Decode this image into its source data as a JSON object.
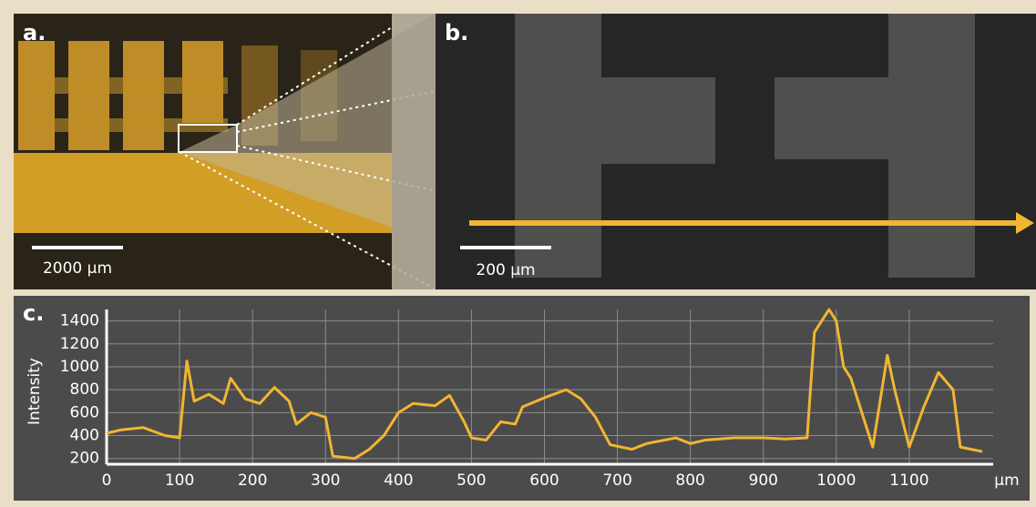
{
  "panels": {
    "a": {
      "label": "a.",
      "scale_bar": "2000 µm"
    },
    "b": {
      "label": "b.",
      "scale_bar": "200 µm"
    }
  },
  "chart_data": {
    "type": "line",
    "panel_label": "c.",
    "y_label": "Intensity",
    "x_unit": "µm",
    "x": [
      0,
      20,
      50,
      80,
      100,
      110,
      120,
      140,
      160,
      170,
      190,
      210,
      230,
      250,
      260,
      280,
      300,
      310,
      340,
      360,
      380,
      400,
      420,
      450,
      470,
      490,
      500,
      520,
      540,
      560,
      570,
      600,
      630,
      650,
      670,
      690,
      720,
      740,
      780,
      800,
      820,
      860,
      900,
      930,
      960,
      970,
      990,
      1000,
      1010,
      1020,
      1030,
      1050,
      1070,
      1080,
      1100,
      1120,
      1140,
      1160,
      1170,
      1200
    ],
    "series": [
      {
        "color": "#f2b531",
        "values": [
          420,
          450,
          470,
          400,
          380,
          1050,
          700,
          760,
          680,
          900,
          720,
          680,
          820,
          700,
          500,
          600,
          560,
          220,
          200,
          280,
          400,
          600,
          680,
          660,
          750,
          520,
          380,
          360,
          520,
          500,
          650,
          730,
          800,
          720,
          560,
          320,
          280,
          330,
          380,
          330,
          360,
          380,
          380,
          370,
          380,
          1300,
          1500,
          1400,
          1000,
          900,
          700,
          300,
          1100,
          800,
          300,
          650,
          950,
          800,
          300,
          260
        ]
      }
    ],
    "xlim": [
      0,
      1215
    ],
    "ylim": [
      150,
      1500
    ],
    "xticks": [
      0,
      100,
      200,
      300,
      400,
      500,
      600,
      700,
      800,
      900,
      1000,
      1100
    ],
    "yticks": [
      200,
      400,
      600,
      800,
      1000,
      1200,
      1400
    ],
    "grid": true
  }
}
